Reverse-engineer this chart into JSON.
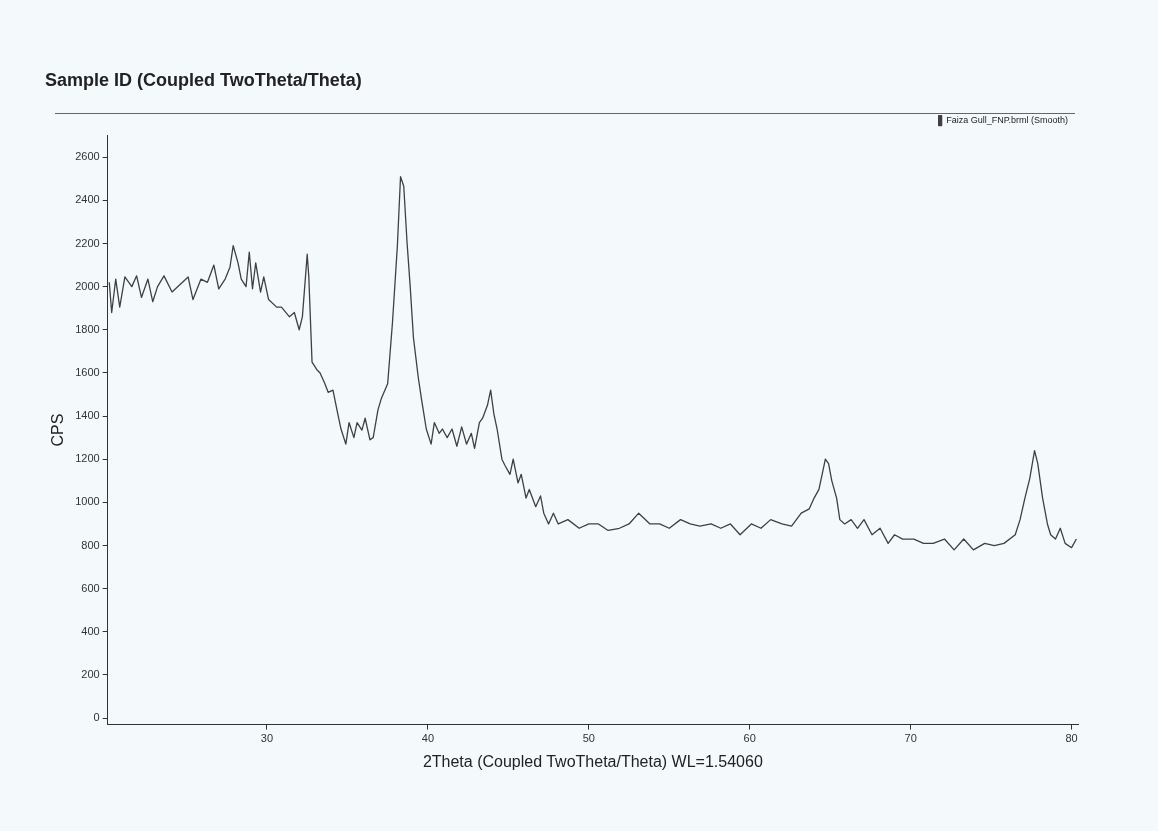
{
  "chart_data": {
    "type": "line",
    "title": "Sample ID (Coupled TwoTheta/Theta)",
    "xlabel": "2Theta (Coupled TwoTheta/Theta) WL=1.54060",
    "ylabel": "CPS",
    "x": [
      20.2,
      20.35,
      20.6,
      20.85,
      21.17,
      21.6,
      21.9,
      22.2,
      22.6,
      22.9,
      23.2,
      23.6,
      24.1,
      24.6,
      25.1,
      25.4,
      25.9,
      26.3,
      26.7,
      27.0,
      27.4,
      27.7,
      27.9,
      28.2,
      28.4,
      28.7,
      28.9,
      29.1,
      29.3,
      29.6,
      29.8,
      30.1,
      30.6,
      30.9,
      31.4,
      31.7,
      32.0,
      32.2,
      32.5,
      32.6,
      32.8,
      33.1,
      33.3,
      33.6,
      33.8,
      34.1,
      34.4,
      34.6,
      34.9,
      35.1,
      35.4,
      35.6,
      35.9,
      36.1,
      36.4,
      36.6,
      36.9,
      37.1,
      37.5,
      37.8,
      38.1,
      38.3,
      38.5,
      38.7,
      38.9,
      39.1,
      39.4,
      39.6,
      39.9,
      40.2,
      40.4,
      40.7,
      40.9,
      41.2,
      41.5,
      41.8,
      42.1,
      42.4,
      42.7,
      42.9,
      43.2,
      43.4,
      43.7,
      43.9,
      44.1,
      44.3,
      44.6,
      44.8,
      45.1,
      45.3,
      45.6,
      45.8,
      46.1,
      46.3,
      46.7,
      47.0,
      47.2,
      47.5,
      47.8,
      48.1,
      48.7,
      49.4,
      50.0,
      50.6,
      51.2,
      51.9,
      52.5,
      53.1,
      53.8,
      54.4,
      55.0,
      55.7,
      56.3,
      56.9,
      57.6,
      58.2,
      58.8,
      59.4,
      60.1,
      60.7,
      61.3,
      62.0,
      62.6,
      63.2,
      63.7,
      64.0,
      64.3,
      64.5,
      64.7,
      64.9,
      65.1,
      65.4,
      65.6,
      65.9,
      66.3,
      66.7,
      67.1,
      67.6,
      68.1,
      68.6,
      69.0,
      69.5,
      70.2,
      70.8,
      71.4,
      72.1,
      72.7,
      73.3,
      73.9,
      74.6,
      75.2,
      75.8,
      76.5,
      76.8,
      77.1,
      77.4,
      77.7,
      77.9,
      78.2,
      78.5,
      78.7,
      79.0,
      79.3,
      79.6,
      80.0,
      80.3
    ],
    "series": [
      {
        "name": "Faiza Gull_FNP.brml (Smooth)",
        "color": "#404040",
        "values": [
          2020,
          1880,
          2035,
          1905,
          2045,
          2000,
          2050,
          1950,
          2035,
          1930,
          2000,
          2050,
          1975,
          2010,
          2045,
          1940,
          2035,
          2020,
          2100,
          1990,
          2035,
          2090,
          2190,
          2110,
          2035,
          2000,
          2160,
          1990,
          2110,
          1975,
          2045,
          1940,
          1905,
          1905,
          1860,
          1880,
          1800,
          1860,
          2150,
          2045,
          1650,
          1615,
          1600,
          1550,
          1510,
          1520,
          1410,
          1340,
          1270,
          1370,
          1300,
          1370,
          1335,
          1390,
          1290,
          1300,
          1430,
          1480,
          1550,
          1835,
          2185,
          2510,
          2465,
          2210,
          2000,
          1765,
          1580,
          1480,
          1340,
          1270,
          1370,
          1320,
          1340,
          1300,
          1340,
          1260,
          1350,
          1270,
          1320,
          1250,
          1370,
          1390,
          1450,
          1520,
          1410,
          1340,
          1200,
          1170,
          1130,
          1200,
          1090,
          1130,
          1020,
          1060,
          980,
          1030,
          950,
          900,
          950,
          900,
          920,
          880,
          900,
          900,
          870,
          880,
          900,
          950,
          900,
          900,
          880,
          920,
          900,
          890,
          900,
          880,
          900,
          850,
          900,
          880,
          920,
          900,
          890,
          950,
          970,
          1020,
          1060,
          1130,
          1200,
          1180,
          1100,
          1020,
          920,
          900,
          920,
          880,
          920,
          850,
          880,
          810,
          850,
          830,
          830,
          810,
          810,
          830,
          780,
          830,
          780,
          810,
          800,
          810,
          850,
          920,
          1020,
          1110,
          1240,
          1180,
          1020,
          900,
          850,
          830,
          880,
          810,
          790,
          830
        ]
      }
    ],
    "xlim": [
      20.1,
      80.4
    ],
    "ylim": [
      -30,
      2700
    ],
    "xticks": [
      30,
      40,
      50,
      60,
      70,
      80
    ],
    "yticks": [
      0,
      200,
      400,
      600,
      800,
      1000,
      1200,
      1400,
      1600,
      1800,
      2000,
      2200,
      2400,
      2600
    ],
    "legend": "top right",
    "marker": "none",
    "line_style": "solid"
  }
}
